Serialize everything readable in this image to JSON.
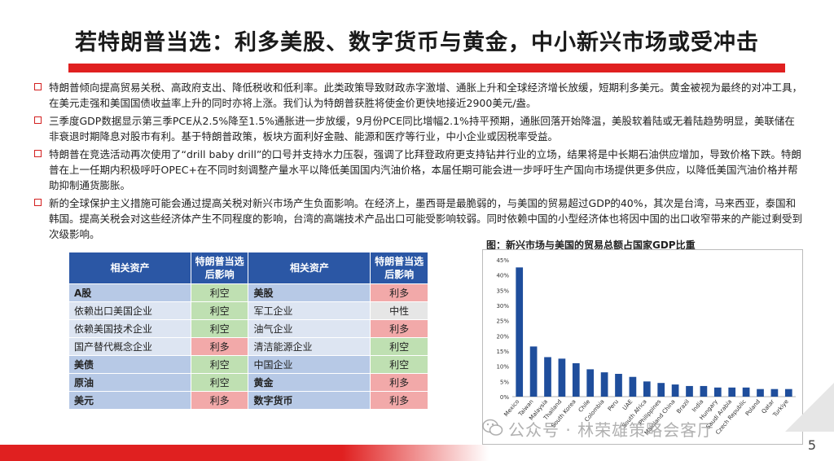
{
  "title": "若特朗普当选：利多美股、数字货币与黄金，中小新兴市场或受冲击",
  "bullets": [
    "特朗普倾向提高贸易关税、高政府支出、降低税收和低利率。此类政策导致财政赤字激增、通胀上升和全球经济增长放缓，短期利多美元。黄金被视为最终的对冲工具，在美元走强和美国国债收益率上升的同时亦将上涨。我们认为特朗普获胜将使金价更快地接近2900美元/盎。",
    "三季度GDP数据显示第三季PCE从2.5%降至1.5%通胀进一步放缓，9月份PCE同比增幅2.1%持平预期，通胀回落开始降温，美股软着陆或无着陆趋势明显，美联储在非衰退时期降息对股市有利。基于特朗普政策，板块方面利好金融、能源和医疗等行业，中小企业或因税率受益。",
    "特朗普在竞选活动再次使用了“drill baby drill”的口号并支持水力压裂，强调了比拜登政府更支持钻井行业的立场，结果将是中长期石油供应增加，导致价格下跌。特朗普在上一任期内积极呼吁OPEC+在不同时刻调整产量水平以降低美国国内汽油价格，本届任期可能会进一步呼吁生产国向市场提供更多供应，以降低美国汽油价格并帮助抑制通货膨胀。",
    "新的全球保护主义措施可能会通过提高关税对新兴市场产生负面影响。在经济上，墨西哥是最脆弱的，与美国的贸易超过GDP的40%，其次是台湾，马来西亚，泰国和韩国。提高关税会对这些经济体产生不同程度的影响，台湾的高端技术产品出口可能受影响较弱。同时依赖中国的小型经济体也将因中国的出口收窄带来的产能过剩受到次级影响。"
  ],
  "table": {
    "headers": [
      "相关资产",
      "特朗普当选后影响",
      "相关资产",
      "特朗普当选后影响"
    ],
    "rows": [
      {
        "a1": "A股",
        "i1": "利空",
        "a2": "美股",
        "i2": "利多"
      },
      {
        "a1": "依赖出口美国企业",
        "i1": "利空",
        "a2": "军工企业",
        "i2": "中性"
      },
      {
        "a1": "依赖美国技术企业",
        "i1": "利空",
        "a2": "油气企业",
        "i2": "利多"
      },
      {
        "a1": "国产替代概念企业",
        "i1": "利多",
        "a2": "清洁能源企业",
        "i2": "利空"
      },
      {
        "a1": "美债",
        "i1": "利空",
        "a2": "中国企业",
        "i2": "利空"
      },
      {
        "a1": "原油",
        "i1": "利空",
        "a2": "黄金",
        "i2": "利多"
      },
      {
        "a1": "美元",
        "i1": "利多",
        "a2": "数字货币",
        "i2": "利多"
      }
    ]
  },
  "chart_title": "图：新兴市场与美国的贸易总额占国家GDP比重",
  "chart_data": {
    "type": "bar",
    "title": "图：新兴市场与美国的贸易总额占国家GDP比重",
    "categories": [
      "Mexico",
      "Taiwan",
      "Malaysia",
      "Thailand",
      "South Korea",
      "Chile",
      "Colombia",
      "Peru",
      "UAE",
      "South Africa",
      "Philippines",
      "Mainland China",
      "Brazil",
      "India",
      "Hungary",
      "Saudi Arabia",
      "Czech Republic",
      "Poland",
      "Qatar",
      "Turkiye"
    ],
    "values": [
      42.5,
      16.5,
      13,
      12.5,
      11,
      9,
      8,
      7.5,
      6.5,
      5,
      4.5,
      4,
      3.5,
      3.5,
      3,
      3,
      3,
      2.5,
      2.5,
      2.5
    ],
    "ylim": [
      0,
      45
    ],
    "yticks": [
      "0%",
      "5%",
      "10%",
      "15%",
      "20%",
      "25%",
      "30%",
      "35%",
      "40%",
      "45%"
    ],
    "bar_color": "#1f4e9c",
    "xlabel": "",
    "ylabel": ""
  },
  "watermark": "公众号 · 林荣雄策略会客厅",
  "page_number": "5",
  "colors": {
    "accent_red": "#e02020",
    "header_blue": "#2b57a5",
    "positive_green": "#bfe0b2",
    "negative_red": "#f2a9a9",
    "neutral_grey": "#e6e6e6"
  }
}
